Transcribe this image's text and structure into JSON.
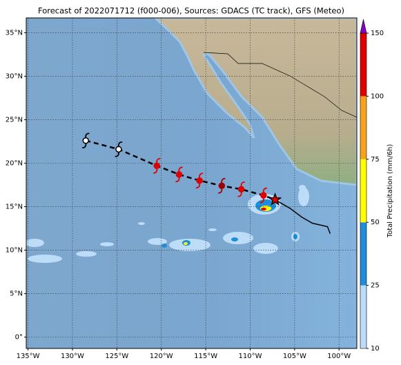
{
  "chart_data": {
    "type": "map",
    "title": "Forecast of 2022071712 (f000-006), Sources: GDACS (TC track), GFS (Meteo)",
    "xlim": [
      -135.2,
      -98.0
    ],
    "ylim": [
      -1.3,
      36.7
    ],
    "xticks": [
      {
        "value": -135,
        "label": "135°W"
      },
      {
        "value": -130,
        "label": "130°W"
      },
      {
        "value": -125,
        "label": "125°W"
      },
      {
        "value": -120,
        "label": "120°W"
      },
      {
        "value": -115,
        "label": "115°W"
      },
      {
        "value": -110,
        "label": "110°W"
      },
      {
        "value": -105,
        "label": "105°W"
      },
      {
        "value": -100,
        "label": "100°W"
      }
    ],
    "yticks": [
      {
        "value": 0,
        "label": "0°"
      },
      {
        "value": 5,
        "label": "5°N"
      },
      {
        "value": 10,
        "label": "10°N"
      },
      {
        "value": 15,
        "label": "15°N"
      },
      {
        "value": 20,
        "label": "20°N"
      },
      {
        "value": 25,
        "label": "25°N"
      },
      {
        "value": 30,
        "label": "30°N"
      },
      {
        "value": 35,
        "label": "35°N"
      }
    ],
    "grid": true,
    "forecast_track": {
      "lon": [
        -128.5,
        -124.8,
        -120.5,
        -118.0,
        -115.7,
        -113.2,
        -111.0,
        -108.5
      ],
      "lat": [
        22.6,
        21.6,
        19.7,
        18.7,
        18.0,
        17.4,
        17.0,
        16.3
      ],
      "colors": [
        "#ffffff",
        "#ffffff",
        "#e00000",
        "#e00000",
        "#e00000",
        "#a00000",
        "#e00000",
        "#e00000"
      ]
    },
    "current_position": {
      "lon": -107.2,
      "lat": 15.8,
      "color": "#e00000"
    },
    "past_track": {
      "lon": [
        -107.2,
        -105.5,
        -104.2,
        -103.0,
        -101.3,
        -101.0
      ],
      "lat": [
        15.8,
        14.8,
        13.8,
        13.1,
        12.7,
        11.9
      ]
    },
    "colorbar": {
      "label": "Total Precipitation (mm/6h)",
      "levels": [
        10,
        25,
        50,
        75,
        100,
        150
      ],
      "colors": [
        "#bcdcf7",
        "#1f8ed8",
        "#ffff00",
        "#f7a41c",
        "#e00000"
      ],
      "extend_color": "#8a00c8"
    }
  }
}
